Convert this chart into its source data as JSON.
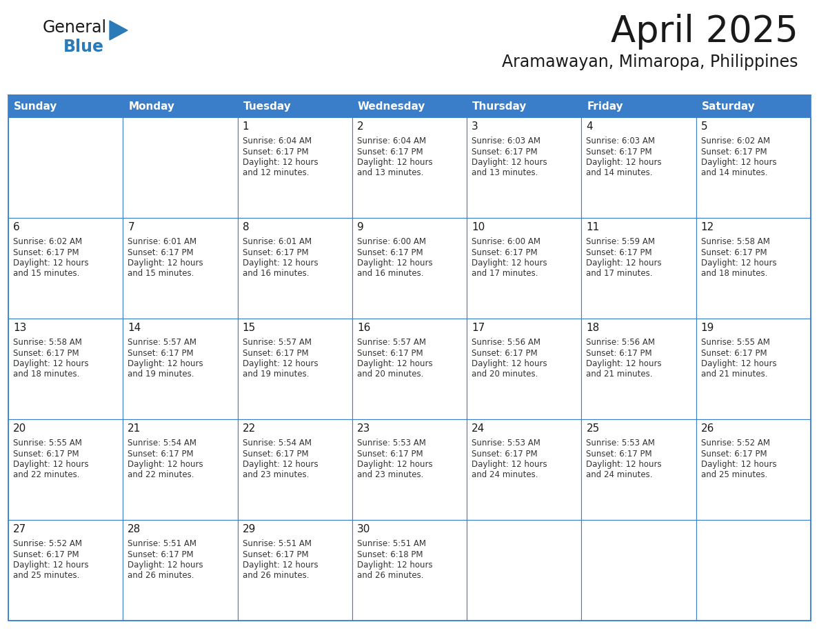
{
  "title": "April 2025",
  "subtitle": "Aramawayan, Mimaropa, Philippines",
  "header_bg_color": "#3A7DC9",
  "header_text_color": "#FFFFFF",
  "cell_bg_color": "#FFFFFF",
  "cell_border_color": "#3A7DC9",
  "title_color": "#1a1a1a",
  "subtitle_color": "#1a1a1a",
  "text_color": "#333333",
  "day_number_color": "#1a1a1a",
  "days_of_week": [
    "Sunday",
    "Monday",
    "Tuesday",
    "Wednesday",
    "Thursday",
    "Friday",
    "Saturday"
  ],
  "calendar_data": [
    [
      {
        "day": 0,
        "sunrise": "",
        "sunset": "",
        "daylight": ""
      },
      {
        "day": 0,
        "sunrise": "",
        "sunset": "",
        "daylight": ""
      },
      {
        "day": 1,
        "sunrise": "6:04 AM",
        "sunset": "6:17 PM",
        "daylight": "12 hours and 12 minutes."
      },
      {
        "day": 2,
        "sunrise": "6:04 AM",
        "sunset": "6:17 PM",
        "daylight": "12 hours and 13 minutes."
      },
      {
        "day": 3,
        "sunrise": "6:03 AM",
        "sunset": "6:17 PM",
        "daylight": "12 hours and 13 minutes."
      },
      {
        "day": 4,
        "sunrise": "6:03 AM",
        "sunset": "6:17 PM",
        "daylight": "12 hours and 14 minutes."
      },
      {
        "day": 5,
        "sunrise": "6:02 AM",
        "sunset": "6:17 PM",
        "daylight": "12 hours and 14 minutes."
      }
    ],
    [
      {
        "day": 6,
        "sunrise": "6:02 AM",
        "sunset": "6:17 PM",
        "daylight": "12 hours and 15 minutes."
      },
      {
        "day": 7,
        "sunrise": "6:01 AM",
        "sunset": "6:17 PM",
        "daylight": "12 hours and 15 minutes."
      },
      {
        "day": 8,
        "sunrise": "6:01 AM",
        "sunset": "6:17 PM",
        "daylight": "12 hours and 16 minutes."
      },
      {
        "day": 9,
        "sunrise": "6:00 AM",
        "sunset": "6:17 PM",
        "daylight": "12 hours and 16 minutes."
      },
      {
        "day": 10,
        "sunrise": "6:00 AM",
        "sunset": "6:17 PM",
        "daylight": "12 hours and 17 minutes."
      },
      {
        "day": 11,
        "sunrise": "5:59 AM",
        "sunset": "6:17 PM",
        "daylight": "12 hours and 17 minutes."
      },
      {
        "day": 12,
        "sunrise": "5:58 AM",
        "sunset": "6:17 PM",
        "daylight": "12 hours and 18 minutes."
      }
    ],
    [
      {
        "day": 13,
        "sunrise": "5:58 AM",
        "sunset": "6:17 PM",
        "daylight": "12 hours and 18 minutes."
      },
      {
        "day": 14,
        "sunrise": "5:57 AM",
        "sunset": "6:17 PM",
        "daylight": "12 hours and 19 minutes."
      },
      {
        "day": 15,
        "sunrise": "5:57 AM",
        "sunset": "6:17 PM",
        "daylight": "12 hours and 19 minutes."
      },
      {
        "day": 16,
        "sunrise": "5:57 AM",
        "sunset": "6:17 PM",
        "daylight": "12 hours and 20 minutes."
      },
      {
        "day": 17,
        "sunrise": "5:56 AM",
        "sunset": "6:17 PM",
        "daylight": "12 hours and 20 minutes."
      },
      {
        "day": 18,
        "sunrise": "5:56 AM",
        "sunset": "6:17 PM",
        "daylight": "12 hours and 21 minutes."
      },
      {
        "day": 19,
        "sunrise": "5:55 AM",
        "sunset": "6:17 PM",
        "daylight": "12 hours and 21 minutes."
      }
    ],
    [
      {
        "day": 20,
        "sunrise": "5:55 AM",
        "sunset": "6:17 PM",
        "daylight": "12 hours and 22 minutes."
      },
      {
        "day": 21,
        "sunrise": "5:54 AM",
        "sunset": "6:17 PM",
        "daylight": "12 hours and 22 minutes."
      },
      {
        "day": 22,
        "sunrise": "5:54 AM",
        "sunset": "6:17 PM",
        "daylight": "12 hours and 23 minutes."
      },
      {
        "day": 23,
        "sunrise": "5:53 AM",
        "sunset": "6:17 PM",
        "daylight": "12 hours and 23 minutes."
      },
      {
        "day": 24,
        "sunrise": "5:53 AM",
        "sunset": "6:17 PM",
        "daylight": "12 hours and 24 minutes."
      },
      {
        "day": 25,
        "sunrise": "5:53 AM",
        "sunset": "6:17 PM",
        "daylight": "12 hours and 24 minutes."
      },
      {
        "day": 26,
        "sunrise": "5:52 AM",
        "sunset": "6:17 PM",
        "daylight": "12 hours and 25 minutes."
      }
    ],
    [
      {
        "day": 27,
        "sunrise": "5:52 AM",
        "sunset": "6:17 PM",
        "daylight": "12 hours and 25 minutes."
      },
      {
        "day": 28,
        "sunrise": "5:51 AM",
        "sunset": "6:17 PM",
        "daylight": "12 hours and 26 minutes."
      },
      {
        "day": 29,
        "sunrise": "5:51 AM",
        "sunset": "6:17 PM",
        "daylight": "12 hours and 26 minutes."
      },
      {
        "day": 30,
        "sunrise": "5:51 AM",
        "sunset": "6:18 PM",
        "daylight": "12 hours and 26 minutes."
      },
      {
        "day": 0,
        "sunrise": "",
        "sunset": "",
        "daylight": ""
      },
      {
        "day": 0,
        "sunrise": "",
        "sunset": "",
        "daylight": ""
      },
      {
        "day": 0,
        "sunrise": "",
        "sunset": "",
        "daylight": ""
      }
    ]
  ],
  "fig_width": 11.88,
  "fig_height": 9.18,
  "dpi": 100,
  "logo_general_color": "#1a1a1a",
  "logo_blue_color": "#2B7BB9",
  "logo_triangle_color": "#2B7BB9",
  "title_fontsize": 38,
  "subtitle_fontsize": 17,
  "header_fontsize": 11,
  "day_num_fontsize": 11,
  "cell_text_fontsize": 8.5
}
